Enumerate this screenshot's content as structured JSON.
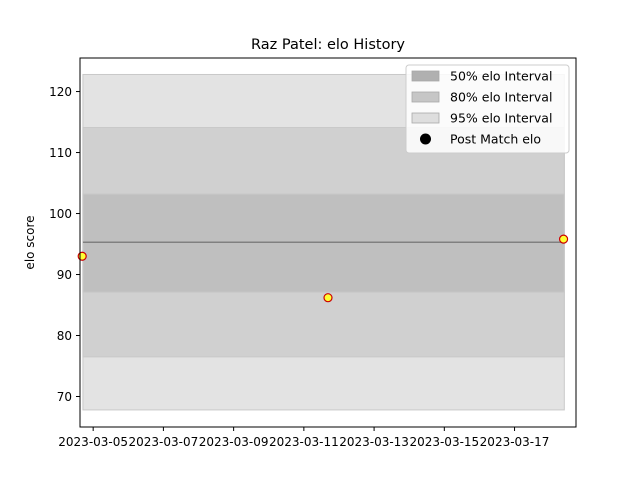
{
  "chart_data": {
    "type": "line",
    "title": "Raz Patel: elo History",
    "xlabel": "",
    "ylabel": "elo score",
    "x_range": [
      "2023-03-04T15:00",
      "2023-03-18T18:00"
    ],
    "ylim": [
      65,
      125.5
    ],
    "x_ticks": [
      "2023-03-05",
      "2023-03-07",
      "2023-03-09",
      "2023-03-11",
      "2023-03-13",
      "2023-03-15",
      "2023-03-17"
    ],
    "y_ticks": [
      70,
      80,
      90,
      100,
      110,
      120
    ],
    "grid": false,
    "legend_position": "top-right",
    "band_x": [
      "2023-03-04T17:00",
      "2023-03-18T10:00"
    ],
    "mean": 95.3,
    "intervals": [
      {
        "name": "95% elo Interval",
        "low": 67.8,
        "high": 122.8,
        "color": "#e3e3e3"
      },
      {
        "name": "80% elo Interval",
        "low": 76.5,
        "high": 114.1,
        "color": "#d0d0d0"
      },
      {
        "name": "50% elo Interval",
        "low": 87.1,
        "high": 103.2,
        "color": "#bfbfbf"
      }
    ],
    "legend": [
      {
        "name": "50% elo Interval",
        "kind": "patch",
        "color": "#b0b0b0"
      },
      {
        "name": "80% elo Interval",
        "kind": "patch",
        "color": "#c6c6c6"
      },
      {
        "name": "95% elo Interval",
        "kind": "patch",
        "color": "#dedede"
      },
      {
        "name": "Post Match elo",
        "kind": "marker",
        "color": "#000000"
      }
    ],
    "series": [
      {
        "name": "Post Match elo",
        "x": [
          "2023-03-04T16:30",
          "2023-03-11T16:30",
          "2023-03-18T09:30"
        ],
        "y": [
          93.0,
          86.2,
          95.8
        ],
        "marker_fill": "#ffff33",
        "marker_edge": "#cc0000"
      }
    ]
  }
}
